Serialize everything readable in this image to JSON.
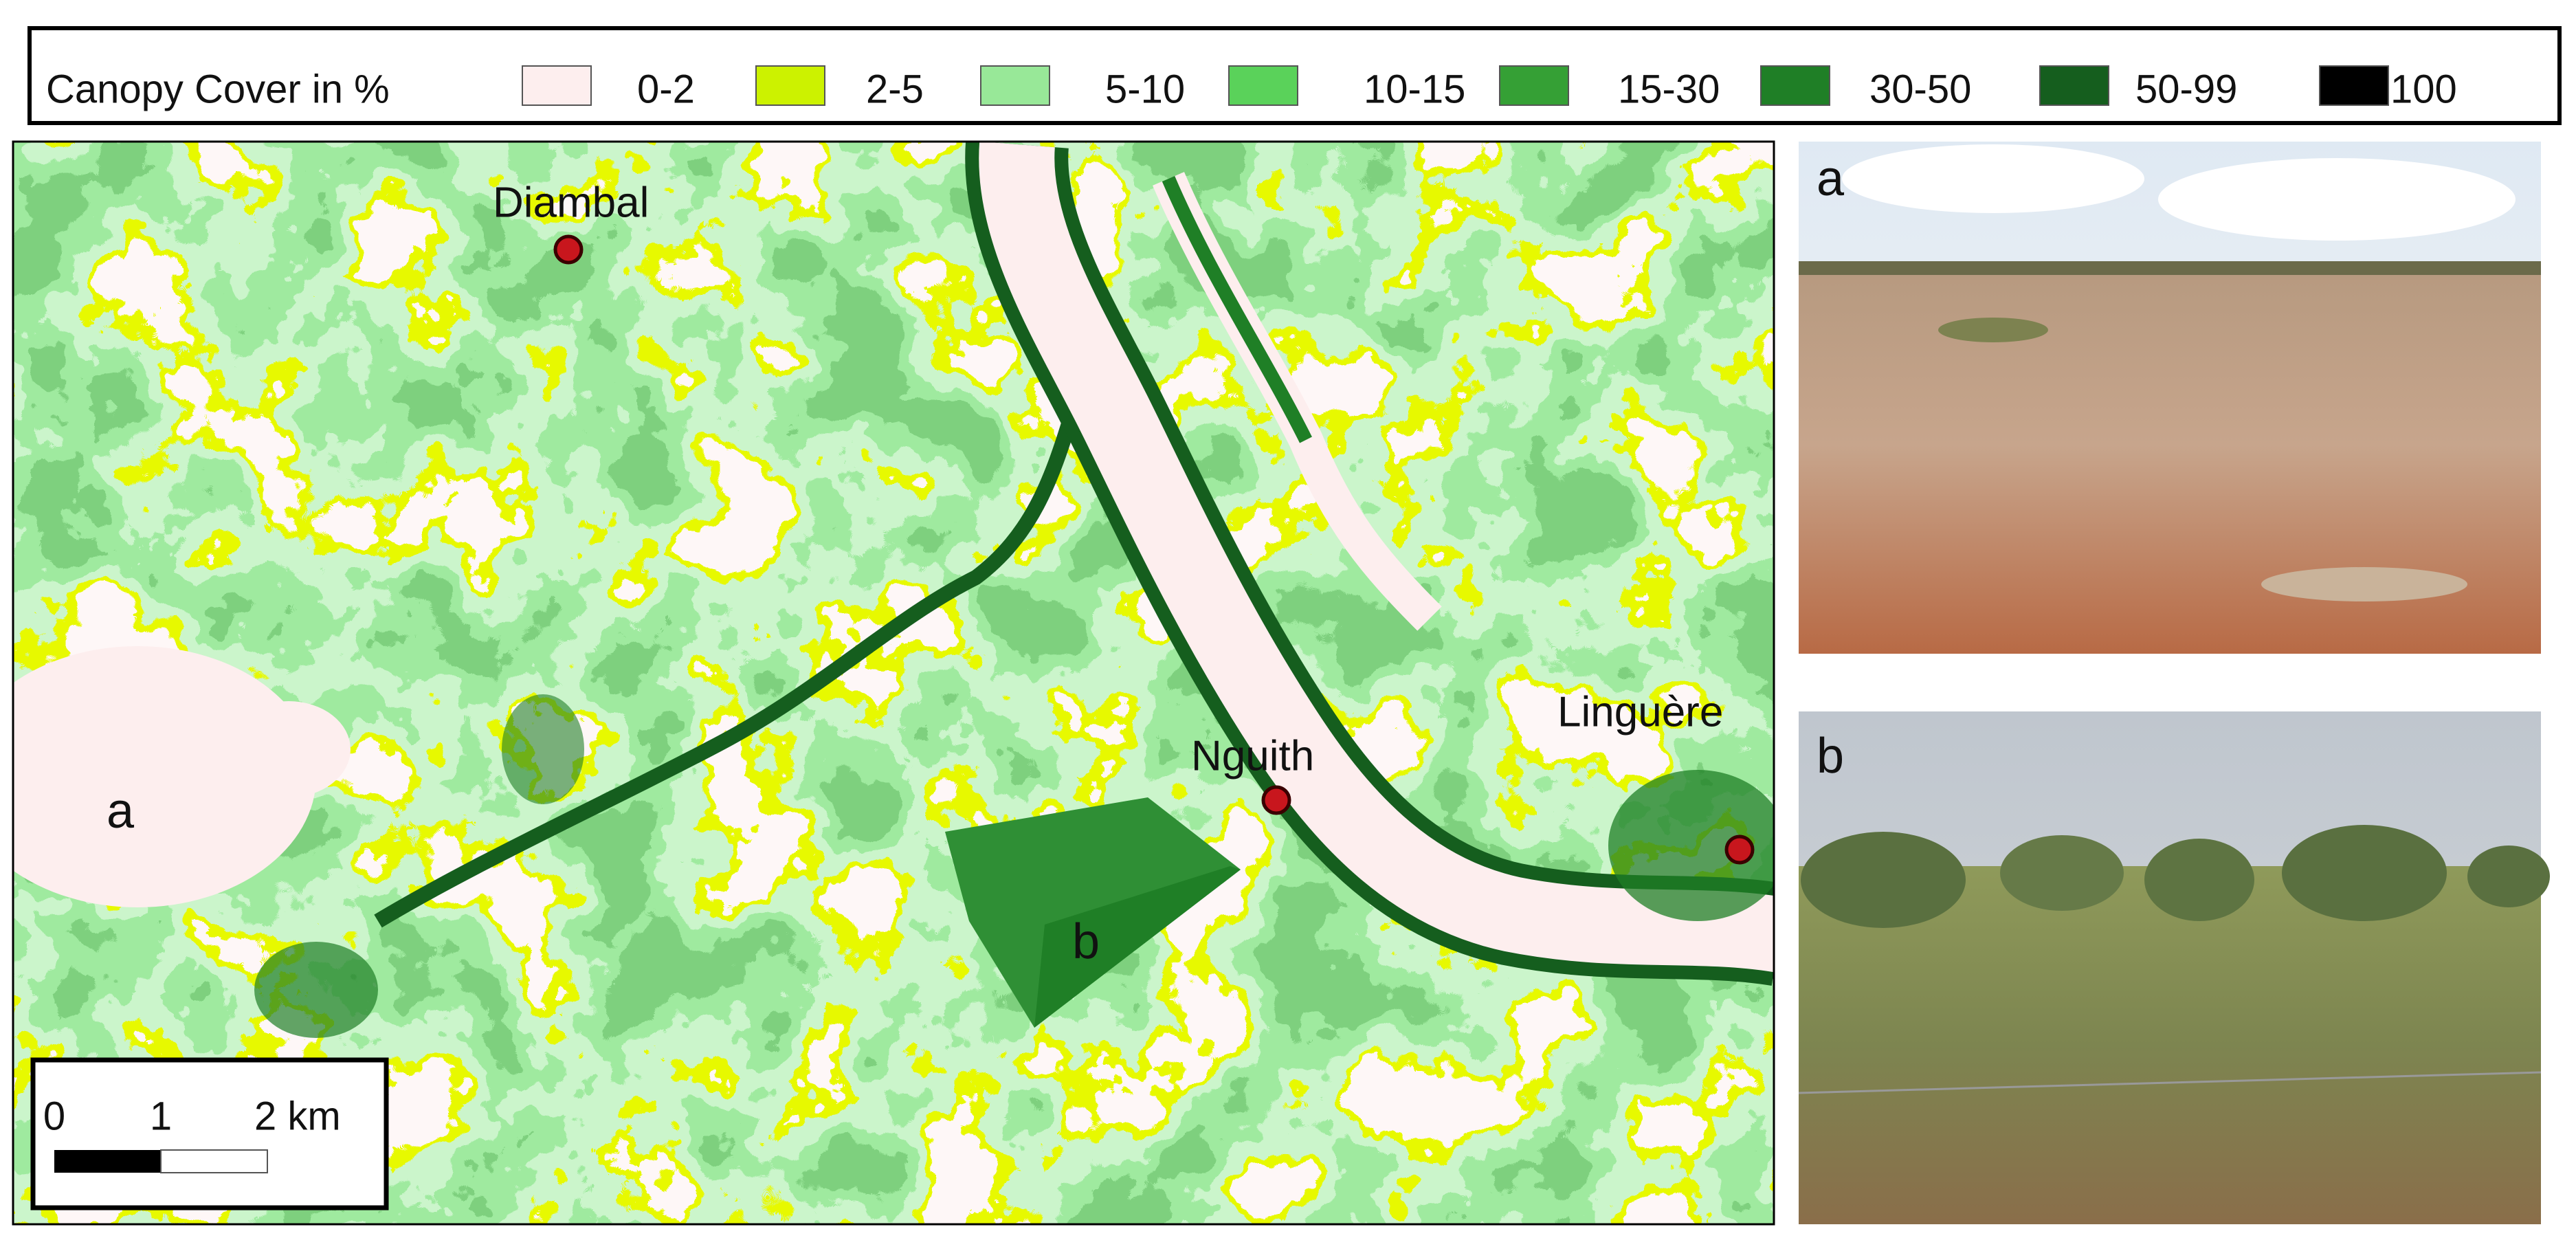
{
  "legend": {
    "title": "Canopy Cover in %",
    "items": [
      {
        "label": "0-2",
        "color": "#fdeeee"
      },
      {
        "label": "2-5",
        "color": "#ccf200"
      },
      {
        "label": "5-10",
        "color": "#98e898"
      },
      {
        "label": "10-15",
        "color": "#5ad25a"
      },
      {
        "label": "15-30",
        "color": "#35a035"
      },
      {
        "label": "30-50",
        "color": "#1f7f26"
      },
      {
        "label": "50-99",
        "color": "#155e1e"
      },
      {
        "label": "100",
        "color": "#000000"
      }
    ]
  },
  "map": {
    "places": [
      {
        "label": "Diambal"
      },
      {
        "label": "Nguith"
      },
      {
        "label": "Linguère"
      }
    ],
    "area_labels": [
      "a",
      "b"
    ],
    "scale_bar": {
      "ticks": [
        "0",
        "1",
        "2 km"
      ]
    }
  },
  "photos": [
    {
      "label": "a"
    },
    {
      "label": "b"
    }
  ]
}
